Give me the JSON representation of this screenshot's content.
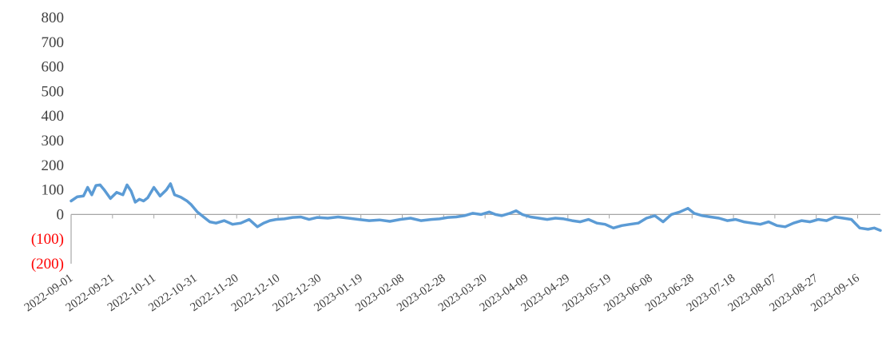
{
  "chart_data": {
    "type": "line",
    "title": "",
    "xlabel": "",
    "ylabel": "",
    "ylim": [
      -200,
      800
    ],
    "y_ticks": [
      800,
      700,
      600,
      500,
      400,
      300,
      200,
      100,
      0,
      -100,
      -200
    ],
    "y_tick_labels": [
      "800",
      "700",
      "600",
      "500",
      "400",
      "300",
      "200",
      "100",
      "0",
      "(100)",
      "(200)"
    ],
    "x_range": [
      "2022-09-01",
      "2023-09-27"
    ],
    "x_tick_labels": [
      "2022-09-01",
      "2022-09-21",
      "2022-10-11",
      "2022-10-31",
      "2022-11-20",
      "2022-12-10",
      "2022-12-30",
      "2023-01-19",
      "2023-02-08",
      "2023-02-28",
      "2023-03-20",
      "2023-04-09",
      "2023-04-29",
      "2023-05-19",
      "2023-06-08",
      "2023-06-28",
      "2023-07-18",
      "2023-08-07",
      "2023-08-27",
      "2023-09-16"
    ],
    "grid": false,
    "legend": "none",
    "colors": {
      "series": "#5b9bd5",
      "negative_tick": "#ff0000",
      "axis": "#a6a6a6",
      "text": "#404040"
    },
    "series": [
      {
        "x": [
          "2022-09-01",
          "2022-09-04",
          "2022-09-07",
          "2022-09-09",
          "2022-09-11",
          "2022-09-13",
          "2022-09-15",
          "2022-09-17",
          "2022-09-20",
          "2022-09-23",
          "2022-09-26",
          "2022-09-28",
          "2022-09-30",
          "2022-10-02",
          "2022-10-04",
          "2022-10-06",
          "2022-10-08",
          "2022-10-11",
          "2022-10-14",
          "2022-10-17",
          "2022-10-19",
          "2022-10-21",
          "2022-10-24",
          "2022-10-27",
          "2022-10-29",
          "2022-11-01",
          "2022-11-04",
          "2022-11-07",
          "2022-11-10",
          "2022-11-14",
          "2022-11-18",
          "2022-11-22",
          "2022-11-26",
          "2022-11-30",
          "2022-12-03",
          "2022-12-06",
          "2022-12-09",
          "2022-12-13",
          "2022-12-17",
          "2022-12-21",
          "2022-12-25",
          "2022-12-29",
          "2023-01-03",
          "2023-01-08",
          "2023-01-13",
          "2023-01-18",
          "2023-01-23",
          "2023-01-28",
          "2023-02-02",
          "2023-02-07",
          "2023-02-12",
          "2023-02-17",
          "2023-02-22",
          "2023-02-26",
          "2023-03-02",
          "2023-03-06",
          "2023-03-10",
          "2023-03-14",
          "2023-03-18",
          "2023-03-22",
          "2023-03-25",
          "2023-03-28",
          "2023-04-01",
          "2023-04-04",
          "2023-04-07",
          "2023-04-11",
          "2023-04-15",
          "2023-04-19",
          "2023-04-23",
          "2023-04-27",
          "2023-05-01",
          "2023-05-05",
          "2023-05-09",
          "2023-05-13",
          "2023-05-17",
          "2023-05-21",
          "2023-05-25",
          "2023-05-29",
          "2023-06-02",
          "2023-06-06",
          "2023-06-10",
          "2023-06-14",
          "2023-06-18",
          "2023-06-22",
          "2023-06-26",
          "2023-06-29",
          "2023-07-03",
          "2023-07-07",
          "2023-07-11",
          "2023-07-15",
          "2023-07-19",
          "2023-07-23",
          "2023-07-27",
          "2023-07-31",
          "2023-08-04",
          "2023-08-08",
          "2023-08-12",
          "2023-08-16",
          "2023-08-20",
          "2023-08-24",
          "2023-08-28",
          "2023-09-01",
          "2023-09-05",
          "2023-09-09",
          "2023-09-13",
          "2023-09-17",
          "2023-09-21",
          "2023-09-24",
          "2023-09-27"
        ],
        "values": [
          55,
          72,
          75,
          110,
          80,
          118,
          120,
          100,
          65,
          90,
          80,
          120,
          95,
          50,
          62,
          55,
          68,
          110,
          75,
          100,
          125,
          80,
          70,
          55,
          40,
          10,
          -10,
          -30,
          -35,
          -25,
          -40,
          -35,
          -20,
          -50,
          -35,
          -25,
          -20,
          -18,
          -12,
          -10,
          -20,
          -12,
          -15,
          -10,
          -15,
          -20,
          -25,
          -22,
          -28,
          -20,
          -15,
          -25,
          -20,
          -18,
          -12,
          -10,
          -5,
          5,
          0,
          10,
          0,
          -5,
          5,
          15,
          0,
          -10,
          -15,
          -20,
          -15,
          -18,
          -25,
          -30,
          -20,
          -35,
          -40,
          -55,
          -45,
          -40,
          -35,
          -15,
          -5,
          -30,
          0,
          10,
          25,
          5,
          -5,
          -10,
          -15,
          -25,
          -20,
          -30,
          -35,
          -40,
          -30,
          -45,
          -50,
          -35,
          -25,
          -30,
          -20,
          -25,
          -10,
          -15,
          -20,
          -55,
          -60,
          -55,
          -65
        ]
      }
    ]
  }
}
